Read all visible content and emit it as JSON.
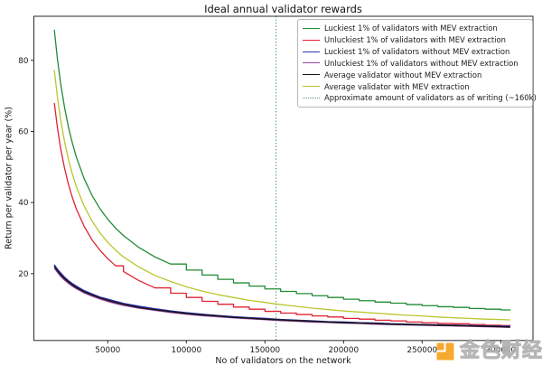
{
  "watermark": {
    "text": "金色财经",
    "logo_color": "#f6a21e"
  },
  "chart_data": {
    "type": "line",
    "title": "Ideal annual validator rewards",
    "xlabel": "No of validators on the network",
    "ylabel": "Return per validator per year (%)",
    "grid": false,
    "legend_position": "upper right",
    "xlim": [
      3000,
      320500
    ],
    "ylim": [
      1.2,
      92.4
    ],
    "x_ticks": {
      "values": [
        50000,
        100000,
        150000,
        200000,
        250000,
        300000
      ],
      "labels": [
        "50000",
        "100000",
        "150000",
        "200000",
        "250000",
        "300000"
      ]
    },
    "y_ticks": {
      "values": [
        20,
        40,
        60,
        80
      ],
      "labels": [
        "20",
        "40",
        "60",
        "80"
      ]
    },
    "x": [
      16000,
      18000,
      20000,
      22500,
      25000,
      27500,
      30000,
      35000,
      40000,
      45000,
      50000,
      55000,
      60000,
      70000,
      80000,
      90000,
      100000,
      110000,
      120000,
      130000,
      140000,
      150000,
      160000,
      170000,
      180000,
      190000,
      200000,
      210000,
      220000,
      230000,
      240000,
      250000,
      260000,
      270000,
      280000,
      290000,
      300000,
      306000
    ],
    "series": [
      {
        "name": "Luckiest 1% of validators with MEV extraction",
        "color": "#218b35",
        "step": true,
        "width": 1.3,
        "values": [
          88.6,
          80.3,
          73.6,
          66.8,
          61.2,
          56.7,
          52.8,
          46.7,
          42.0,
          38.3,
          35.3,
          32.8,
          30.7,
          27.3,
          24.7,
          22.7,
          21.0,
          19.6,
          18.4,
          17.4,
          16.5,
          15.7,
          15.0,
          14.4,
          13.8,
          13.3,
          12.8,
          12.4,
          12.0,
          11.7,
          11.3,
          11.0,
          10.7,
          10.5,
          10.2,
          10.0,
          9.8,
          9.6
        ]
      },
      {
        "name": "Unluckiest 1% of validators with MEV extraction",
        "color": "#e02233",
        "step": true,
        "width": 1.3,
        "values": [
          68.0,
          61.0,
          55.3,
          49.7,
          45.1,
          41.4,
          38.2,
          33.3,
          29.5,
          26.6,
          24.2,
          22.2,
          20.6,
          18.0,
          16.0,
          14.5,
          13.3,
          12.2,
          11.4,
          10.6,
          10.0,
          9.4,
          8.9,
          8.5,
          8.1,
          7.8,
          7.4,
          7.2,
          6.9,
          6.7,
          6.4,
          6.2,
          6.0,
          5.9,
          5.7,
          5.5,
          5.4,
          5.3
        ]
      },
      {
        "name": "Luckiest 1% of validators without MEV extraction",
        "color": "#3232b4",
        "step": false,
        "width": 1.5,
        "values": [
          22.5,
          21.2,
          20.2,
          19.0,
          18.0,
          17.2,
          16.5,
          15.2,
          14.3,
          13.4,
          12.8,
          12.2,
          11.6,
          10.8,
          10.1,
          9.5,
          9.0,
          8.6,
          8.2,
          7.9,
          7.6,
          7.4,
          7.1,
          6.9,
          6.7,
          6.5,
          6.4,
          6.2,
          6.1,
          5.9,
          5.8,
          5.7,
          5.6,
          5.5,
          5.4,
          5.3,
          5.2,
          5.2
        ]
      },
      {
        "name": "Unluckiest 1% of validators without MEV extraction",
        "color": "#9a44a4",
        "step": false,
        "width": 1.5,
        "values": [
          21.6,
          20.4,
          19.3,
          18.2,
          17.3,
          16.5,
          15.8,
          14.6,
          13.7,
          12.9,
          12.2,
          11.6,
          11.1,
          10.3,
          9.7,
          9.1,
          8.6,
          8.2,
          7.9,
          7.6,
          7.3,
          7.1,
          6.8,
          6.6,
          6.4,
          6.3,
          6.1,
          6.0,
          5.8,
          5.7,
          5.6,
          5.5,
          5.4,
          5.3,
          5.2,
          5.1,
          5.0,
          4.9
        ]
      },
      {
        "name": "Average validator without MEV extraction",
        "color": "#151515",
        "step": false,
        "width": 1.5,
        "values": [
          22.1,
          20.8,
          19.7,
          18.6,
          17.7,
          16.8,
          16.1,
          14.9,
          14.0,
          13.2,
          12.5,
          11.9,
          11.4,
          10.5,
          9.9,
          9.3,
          8.8,
          8.4,
          8.1,
          7.7,
          7.5,
          7.2,
          7.0,
          6.8,
          6.6,
          6.4,
          6.2,
          6.1,
          6.0,
          5.8,
          5.7,
          5.6,
          5.5,
          5.4,
          5.3,
          5.2,
          5.1,
          5.0
        ]
      },
      {
        "name": "Average validator with MEV extraction",
        "color": "#b9c62c",
        "step": false,
        "width": 1.3,
        "values": [
          77.3,
          69.6,
          63.4,
          57.2,
          52.1,
          48.0,
          44.5,
          39.0,
          34.8,
          31.5,
          28.8,
          26.6,
          24.7,
          21.8,
          19.5,
          17.8,
          16.3,
          15.1,
          14.1,
          13.3,
          12.5,
          11.9,
          11.3,
          10.8,
          10.3,
          9.9,
          9.5,
          9.2,
          8.9,
          8.6,
          8.3,
          8.1,
          7.8,
          7.6,
          7.4,
          7.2,
          7.1,
          7.0
        ]
      }
    ],
    "vline": {
      "x": 157000,
      "label": "Approximate amount of validators as of writing (~160k)",
      "color": "#4e8e8e",
      "style": "dotted"
    }
  }
}
